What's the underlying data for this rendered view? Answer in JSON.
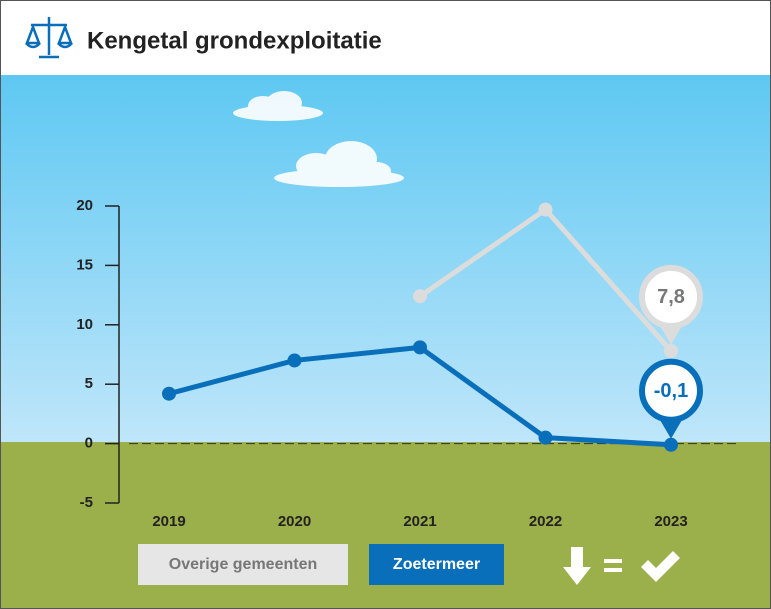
{
  "chart_data": {
    "type": "line",
    "title": "Kengetal grondexploitatie",
    "categories": [
      "2019",
      "2020",
      "2021",
      "2022",
      "2023"
    ],
    "series": [
      {
        "name": "Overige gemeenten",
        "color": "#dcdcdc",
        "values": [
          null,
          null,
          12.4,
          19.7,
          7.8
        ],
        "value_labels": [
          null,
          null,
          null,
          null,
          "7,8"
        ]
      },
      {
        "name": "Zoetermeer",
        "color": "#0a6fba",
        "values": [
          4.2,
          7.0,
          8.1,
          0.5,
          -0.1
        ],
        "value_labels": [
          null,
          null,
          null,
          null,
          "-0,1"
        ]
      }
    ],
    "ylim": [
      -5,
      20
    ],
    "yticks": [
      -5,
      0,
      5,
      10,
      15,
      20
    ]
  }
}
